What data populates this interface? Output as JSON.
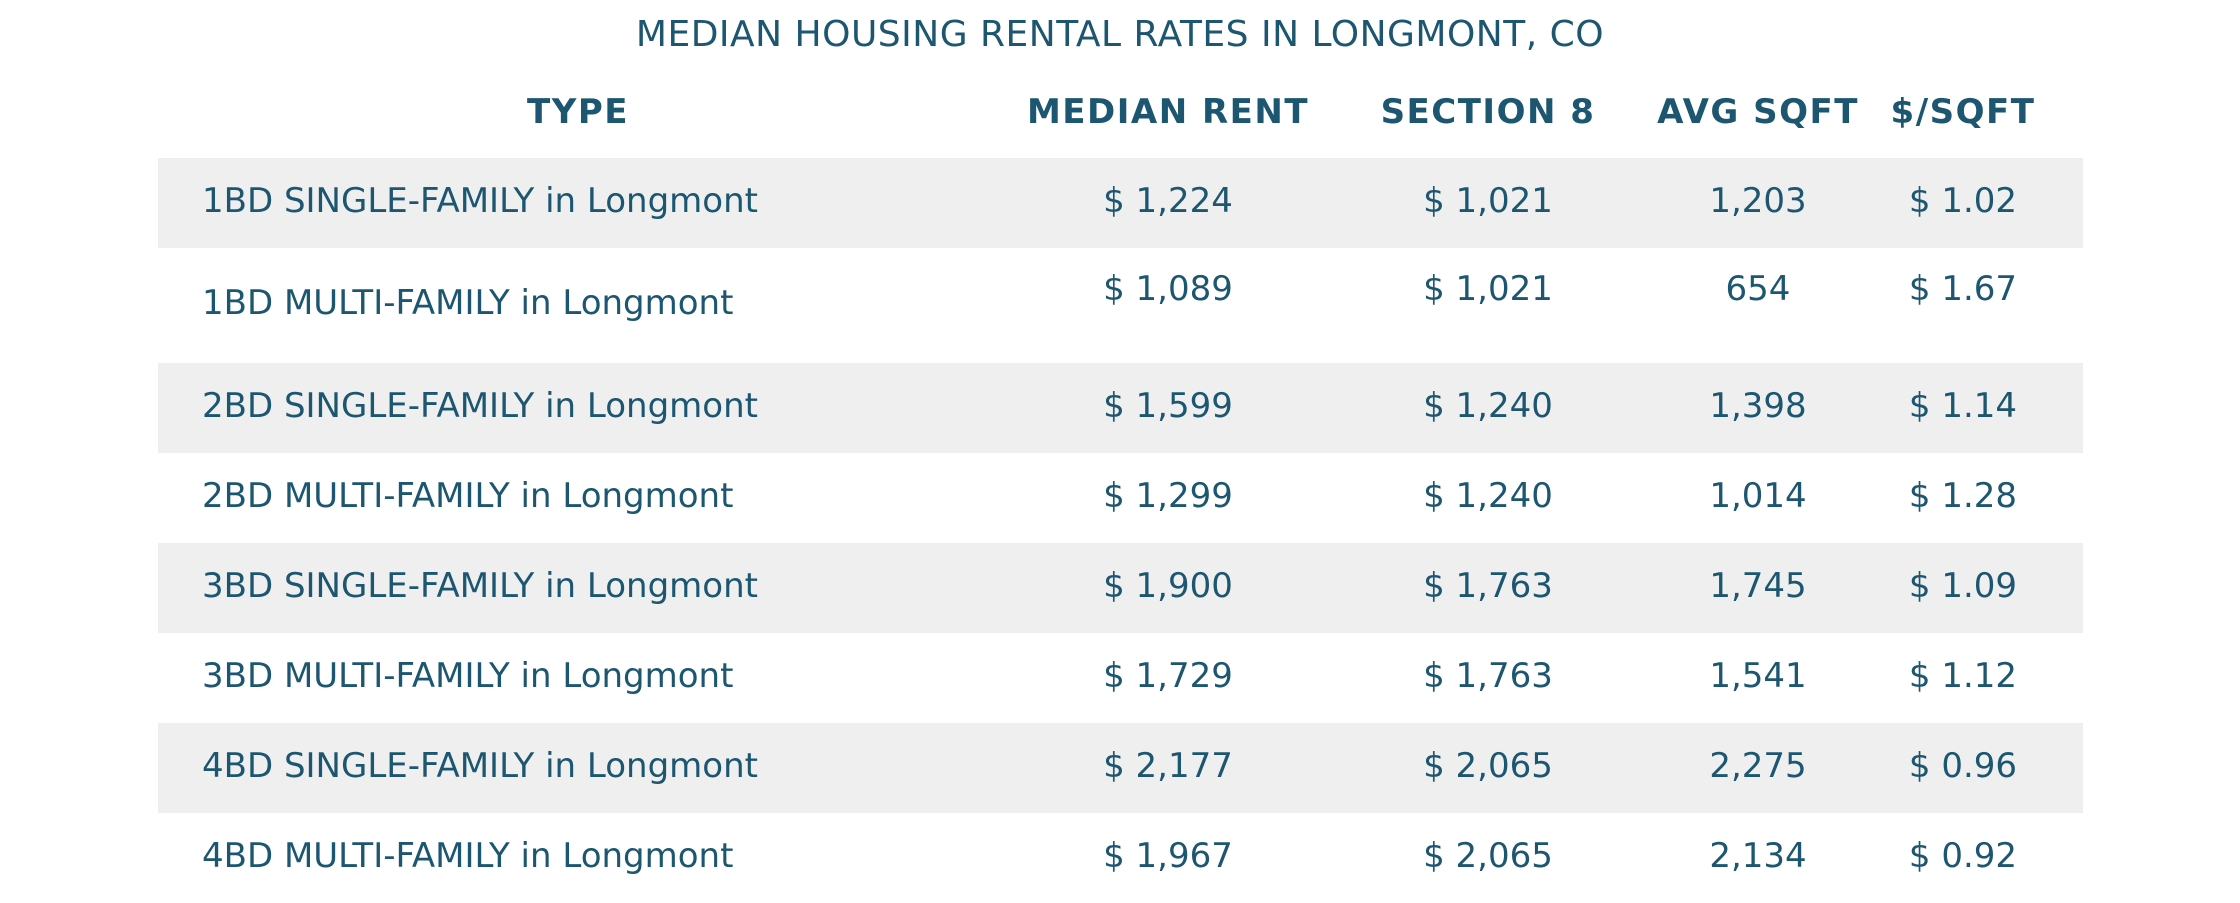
{
  "title": "MEDIAN HOUSING RENTAL RATES IN LONGMONT, CO",
  "columns": [
    "TYPE",
    "MEDIAN RENT",
    "SECTION 8",
    "AVG SQFT",
    "$/SQFT"
  ],
  "rows": [
    {
      "type": "1BD SINGLE-FAMILY in Longmont",
      "median_rent": "$ 1,224",
      "section8": "$ 1,021",
      "avg_sqft": "1,203",
      "per_sqft": "$ 1.02"
    },
    {
      "type": "1BD MULTI-FAMILY in Longmont",
      "median_rent": "$ 1,089",
      "section8": "$ 1,021",
      "avg_sqft": "654",
      "per_sqft": "$ 1.67"
    },
    {
      "type": "2BD SINGLE-FAMILY in Longmont",
      "median_rent": "$ 1,599",
      "section8": "$ 1,240",
      "avg_sqft": "1,398",
      "per_sqft": "$ 1.14"
    },
    {
      "type": "2BD MULTI-FAMILY in Longmont",
      "median_rent": "$ 1,299",
      "section8": "$ 1,240",
      "avg_sqft": "1,014",
      "per_sqft": "$ 1.28"
    },
    {
      "type": "3BD SINGLE-FAMILY in Longmont",
      "median_rent": "$ 1,900",
      "section8": "$ 1,763",
      "avg_sqft": "1,745",
      "per_sqft": "$ 1.09"
    },
    {
      "type": "3BD MULTI-FAMILY in Longmont",
      "median_rent": "$ 1,729",
      "section8": "$ 1,763",
      "avg_sqft": "1,541",
      "per_sqft": "$ 1.12"
    },
    {
      "type": "4BD SINGLE-FAMILY in Longmont",
      "median_rent": "$ 2,177",
      "section8": "$ 2,065",
      "avg_sqft": "2,275",
      "per_sqft": "$ 0.96"
    },
    {
      "type": "4BD MULTI-FAMILY in Longmont",
      "median_rent": "$ 1,967",
      "section8": "$ 2,065",
      "avg_sqft": "2,134",
      "per_sqft": "$ 0.92"
    }
  ],
  "colors": {
    "text": "#1d5670",
    "stripe": "#efefef"
  }
}
